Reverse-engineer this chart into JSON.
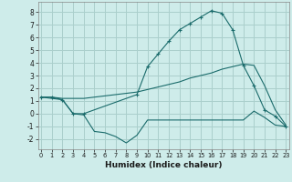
{
  "xlabel": "Humidex (Indice chaleur)",
  "x_ticks": [
    0,
    1,
    2,
    3,
    4,
    5,
    6,
    7,
    8,
    9,
    10,
    11,
    12,
    13,
    14,
    15,
    16,
    17,
    18,
    19,
    20,
    21,
    22,
    23
  ],
  "ylim": [
    -2.8,
    8.8
  ],
  "yticks": [
    -2,
    -1,
    0,
    1,
    2,
    3,
    4,
    5,
    6,
    7,
    8
  ],
  "xlim": [
    -0.3,
    23.3
  ],
  "bg_color": "#ceecea",
  "grid_color": "#aacfcc",
  "line_color": "#1a6b6b",
  "series1_x": [
    0,
    1,
    2,
    3,
    4,
    5,
    6,
    7,
    8,
    9,
    10,
    11,
    12,
    13,
    14,
    15,
    16,
    17,
    18,
    19,
    20,
    21,
    22,
    23
  ],
  "series1_y": [
    1.3,
    1.2,
    1.1,
    0.0,
    -0.1,
    -1.4,
    -1.5,
    -1.8,
    -2.3,
    -1.7,
    -0.5,
    -0.5,
    -0.5,
    -0.5,
    -0.5,
    -0.5,
    -0.5,
    -0.5,
    -0.5,
    -0.5,
    0.2,
    -0.3,
    -0.9,
    -1.0
  ],
  "series2_x": [
    0,
    1,
    2,
    3,
    4,
    5,
    6,
    7,
    8,
    9,
    10,
    11,
    12,
    13,
    14,
    15,
    16,
    17,
    18,
    19,
    20,
    21,
    22,
    23
  ],
  "series2_y": [
    1.3,
    1.3,
    1.2,
    1.2,
    1.2,
    1.3,
    1.4,
    1.5,
    1.6,
    1.7,
    1.9,
    2.1,
    2.3,
    2.5,
    2.8,
    3.0,
    3.2,
    3.5,
    3.7,
    3.9,
    3.8,
    2.2,
    0.3,
    -0.9
  ],
  "series3_x": [
    0,
    1,
    2,
    3,
    4,
    9,
    10,
    11,
    12,
    13,
    14,
    15,
    16,
    17,
    18,
    19,
    20,
    21,
    22,
    23
  ],
  "series3_y": [
    1.3,
    1.3,
    1.1,
    0.0,
    0.0,
    1.5,
    3.7,
    4.7,
    5.7,
    6.6,
    7.1,
    7.6,
    8.1,
    7.9,
    6.6,
    3.8,
    2.2,
    0.3,
    -0.2,
    -1.0
  ]
}
